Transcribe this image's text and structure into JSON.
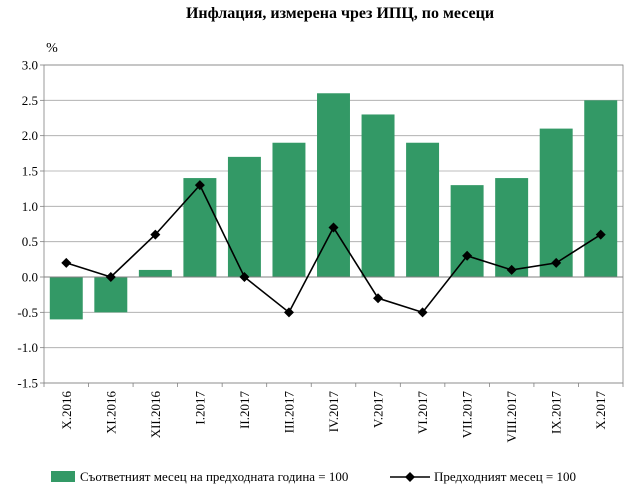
{
  "chart_data": {
    "type": "bar",
    "title": "Инфлация, измерена чрез ИПЦ, по месеци",
    "ylabel": "%",
    "xlabel": "",
    "ylim": [
      -1.5,
      3.0
    ],
    "yticks": [
      "3.0",
      "2.5",
      "2.0",
      "1.5",
      "1.0",
      "0.5",
      "0.0",
      "-0.5",
      "-1.0",
      "-1.5"
    ],
    "grid": true,
    "legend_position": "bottom",
    "categories": [
      "X.2016",
      "XI.2016",
      "XII.2016",
      "I.2017",
      "II.2017",
      "III.2017",
      "IV.2017",
      "V.2017",
      "VI.2017",
      "VII.2017",
      "VIII.2017",
      "IX.2017",
      "X.2017"
    ],
    "series": [
      {
        "name": "Съответният месец на предходната година = 100",
        "type": "bar",
        "color": "#339966",
        "values": [
          -0.6,
          -0.5,
          0.1,
          1.4,
          1.7,
          1.9,
          2.6,
          2.3,
          1.9,
          1.3,
          1.4,
          2.1,
          2.5
        ]
      },
      {
        "name": "Предходният месец = 100",
        "type": "line",
        "color": "#000000",
        "marker": "diamond",
        "values": [
          0.2,
          0.0,
          0.6,
          1.3,
          0.0,
          -0.5,
          0.7,
          -0.3,
          -0.5,
          0.3,
          0.1,
          0.2,
          0.6
        ]
      }
    ]
  }
}
